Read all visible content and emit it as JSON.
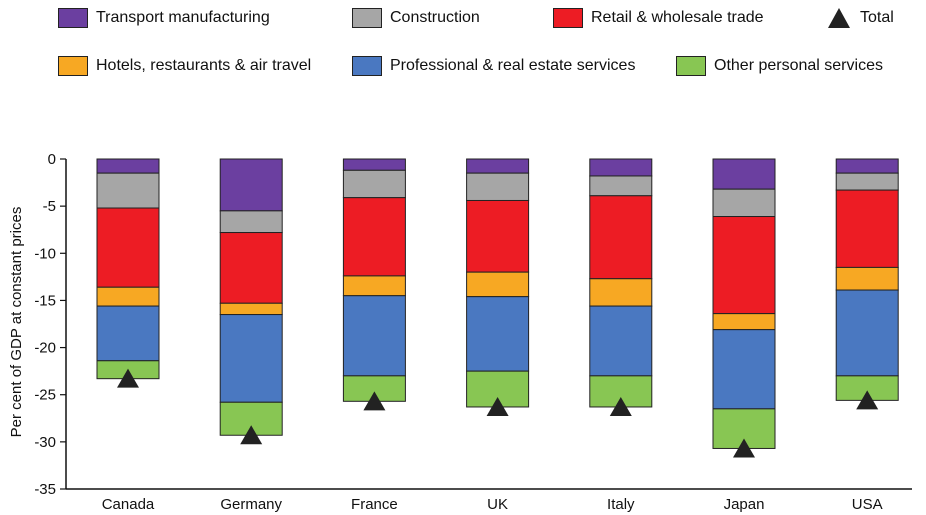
{
  "chart_data": {
    "type": "bar",
    "stacked": true,
    "ylabel": "Per cent of GDP at constant prices",
    "ylim": [
      -35,
      0
    ],
    "yticks": [
      0,
      -5,
      -10,
      -15,
      -20,
      -25,
      -30,
      -35
    ],
    "categories": [
      "Canada",
      "Germany",
      "France",
      "UK",
      "Italy",
      "Japan",
      "USA"
    ],
    "series": [
      {
        "name": "Transport manufacturing",
        "color": "#6b3fa0",
        "values": [
          -1.5,
          -5.5,
          -1.2,
          -1.5,
          -1.8,
          -3.2,
          -1.5
        ]
      },
      {
        "name": "Construction",
        "color": "#a6a6a6",
        "values": [
          -3.7,
          -2.3,
          -2.9,
          -2.9,
          -2.1,
          -2.9,
          -1.8
        ]
      },
      {
        "name": "Retail & wholesale trade",
        "color": "#ed1c24",
        "values": [
          -8.4,
          -7.5,
          -8.3,
          -7.6,
          -8.8,
          -10.3,
          -8.2
        ]
      },
      {
        "name": "Hotels, restaurants & air travel",
        "color": "#f7a823",
        "values": [
          -2.0,
          -1.2,
          -2.1,
          -2.6,
          -2.9,
          -1.7,
          -2.4
        ]
      },
      {
        "name": "Professional & real estate services",
        "color": "#4a78c1",
        "values": [
          -5.8,
          -9.3,
          -8.5,
          -7.9,
          -7.4,
          -8.4,
          -9.1
        ]
      },
      {
        "name": "Other personal services",
        "color": "#88c653",
        "values": [
          -1.9,
          -3.5,
          -2.7,
          -3.8,
          -3.3,
          -4.2,
          -2.6
        ]
      }
    ],
    "total": {
      "name": "Total",
      "color": "#222222",
      "values": [
        -23.3,
        -29.3,
        -25.7,
        -26.3,
        -26.3,
        -30.7,
        -25.6
      ]
    },
    "legend_position": "top",
    "grid": false
  }
}
